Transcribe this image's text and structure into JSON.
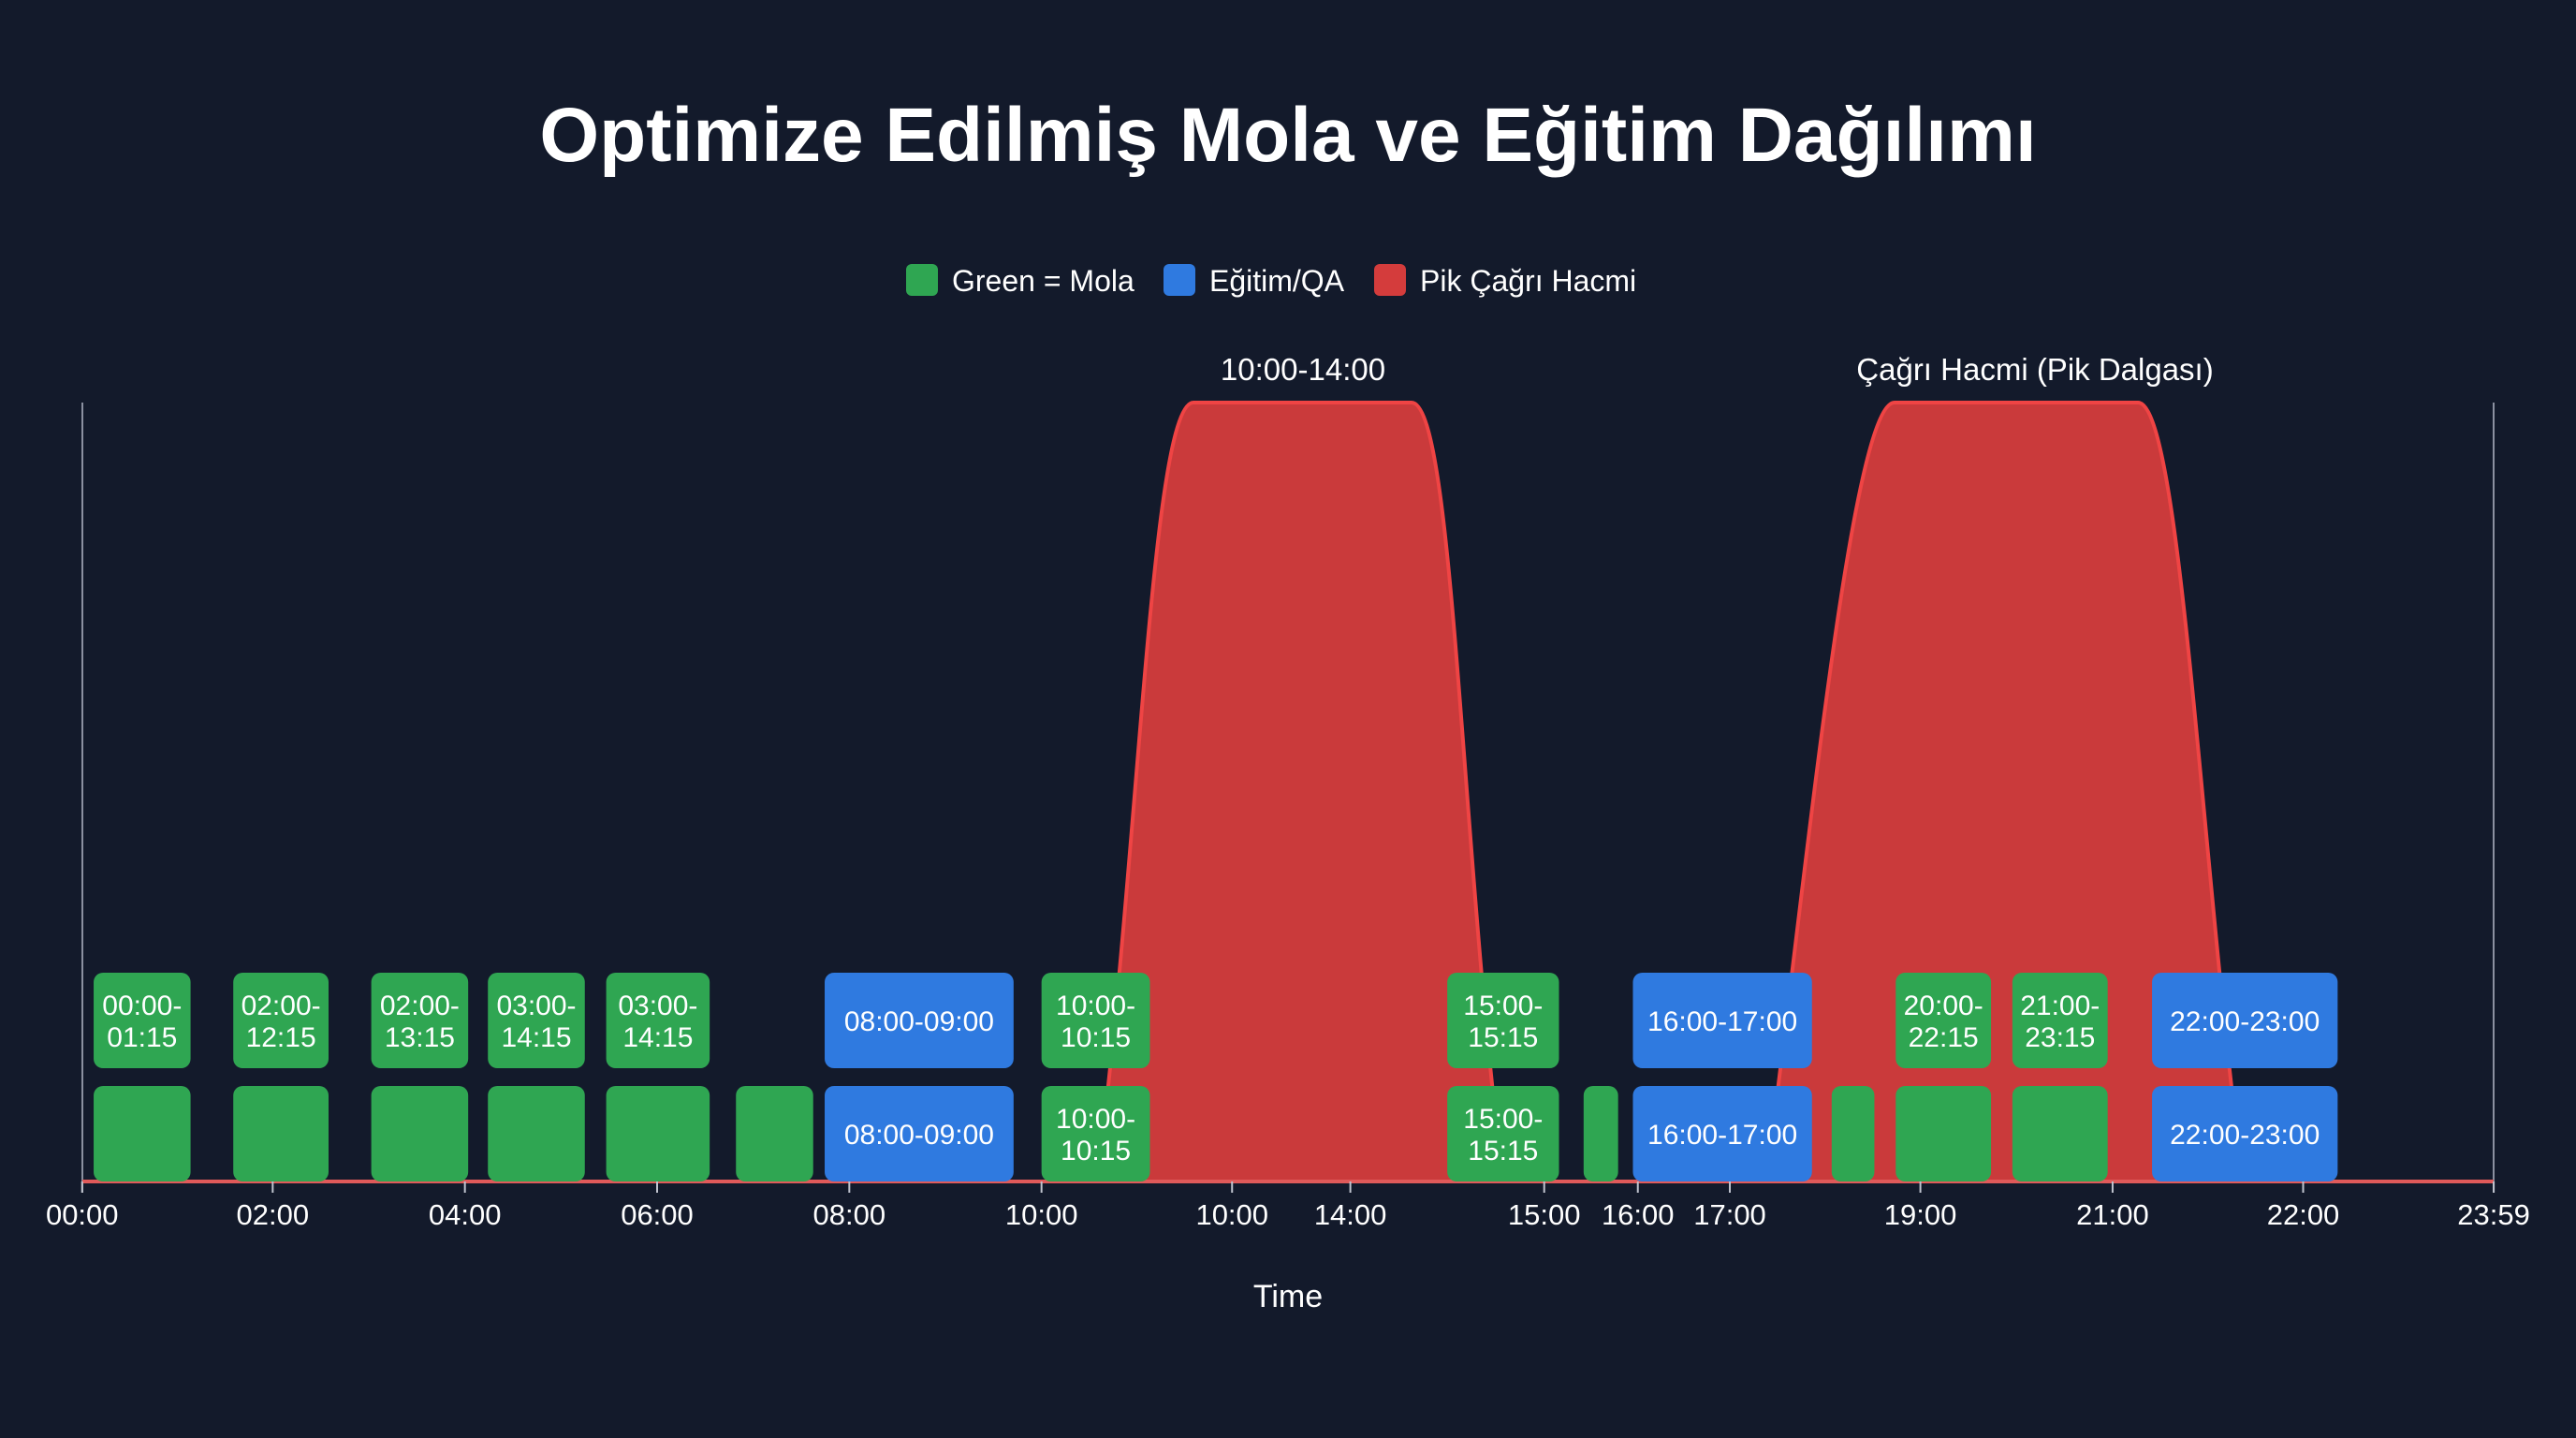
{
  "chart_data": {
    "type": "area",
    "title": "Optimize Edilmiş Mola ve Eğitim Dağılımı",
    "xlabel": "Time",
    "ylabel": "",
    "legend": [
      {
        "label": "Green = Mola",
        "color": "#2fa652"
      },
      {
        "label": "Eğitim/QA",
        "color": "#2f7ae0"
      },
      {
        "label": "Pik Çağrı Hacmi",
        "color": "#d43c3c"
      }
    ],
    "legend_position": "top-center",
    "x_ticks": [
      "00:00",
      "02:00",
      "04:00",
      "06:00",
      "08:00",
      "10:00",
      "10:00",
      "14:00",
      "15:00",
      "16:00",
      "17:00",
      "19:00",
      "21:00",
      "22:00",
      "23:59"
    ],
    "annotations": [
      "10:00-14:00",
      "Çağrı Hacmi (Pik Dalgası)"
    ],
    "peaks": [
      {
        "name": "Pik Çağrı Hacmi",
        "label": "10:00-14:00"
      },
      {
        "name": "Pik Çağrı Hacmi",
        "label": "Çağrı Hacmi (Pik Dalgası)"
      }
    ],
    "blocks": [
      {
        "row": 1,
        "type": "mola",
        "label": [
          "00:00-",
          "01:15"
        ]
      },
      {
        "row": 1,
        "type": "mola",
        "label": [
          "02:00-",
          "12:15"
        ]
      },
      {
        "row": 1,
        "type": "mola",
        "label": [
          "02:00-",
          "13:15"
        ]
      },
      {
        "row": 1,
        "type": "mola",
        "label": [
          "03:00-",
          "14:15"
        ]
      },
      {
        "row": 1,
        "type": "mola",
        "label": [
          "03:00-",
          "14:15"
        ]
      },
      {
        "row": 1,
        "type": "egitim",
        "label": [
          "08:00-09:00"
        ]
      },
      {
        "row": 1,
        "type": "mola",
        "label": [
          "10:00-",
          "10:15"
        ]
      },
      {
        "row": 1,
        "type": "mola",
        "label": [
          "15:00-",
          "15:15"
        ]
      },
      {
        "row": 1,
        "type": "egitim",
        "label": [
          "16:00-17:00"
        ]
      },
      {
        "row": 1,
        "type": "mola",
        "label": [
          "20:00-",
          "22:15"
        ]
      },
      {
        "row": 1,
        "type": "mola",
        "label": [
          "21:00-",
          "23:15"
        ]
      },
      {
        "row": 1,
        "type": "egitim",
        "label": [
          "22:00-23:00"
        ]
      },
      {
        "row": 2,
        "type": "mola",
        "label": []
      },
      {
        "row": 2,
        "type": "mola",
        "label": []
      },
      {
        "row": 2,
        "type": "mola",
        "label": []
      },
      {
        "row": 2,
        "type": "mola",
        "label": []
      },
      {
        "row": 2,
        "type": "mola",
        "label": []
      },
      {
        "row": 2,
        "type": "mola",
        "label": []
      },
      {
        "row": 2,
        "type": "egitim",
        "label": [
          "08:00-09:00"
        ]
      },
      {
        "row": 2,
        "type": "mola",
        "label": [
          "10:00-",
          "10:15"
        ]
      },
      {
        "row": 2,
        "type": "mola",
        "label": [
          "15:00-",
          "15:15"
        ]
      },
      {
        "row": 2,
        "type": "mola",
        "label": []
      },
      {
        "row": 2,
        "type": "egitim",
        "label": [
          "16:00-17:00"
        ]
      },
      {
        "row": 2,
        "type": "mola",
        "label": []
      },
      {
        "row": 2,
        "type": "mola",
        "label": []
      },
      {
        "row": 2,
        "type": "mola",
        "label": []
      },
      {
        "row": 2,
        "type": "egitim",
        "label": [
          "22:00-23:00"
        ]
      }
    ]
  },
  "colors": {
    "background": "#131a2b",
    "mola": "#2fa652",
    "egitim": "#2f7ae0",
    "peak": "#d43c3c",
    "text": "#ffffff"
  }
}
